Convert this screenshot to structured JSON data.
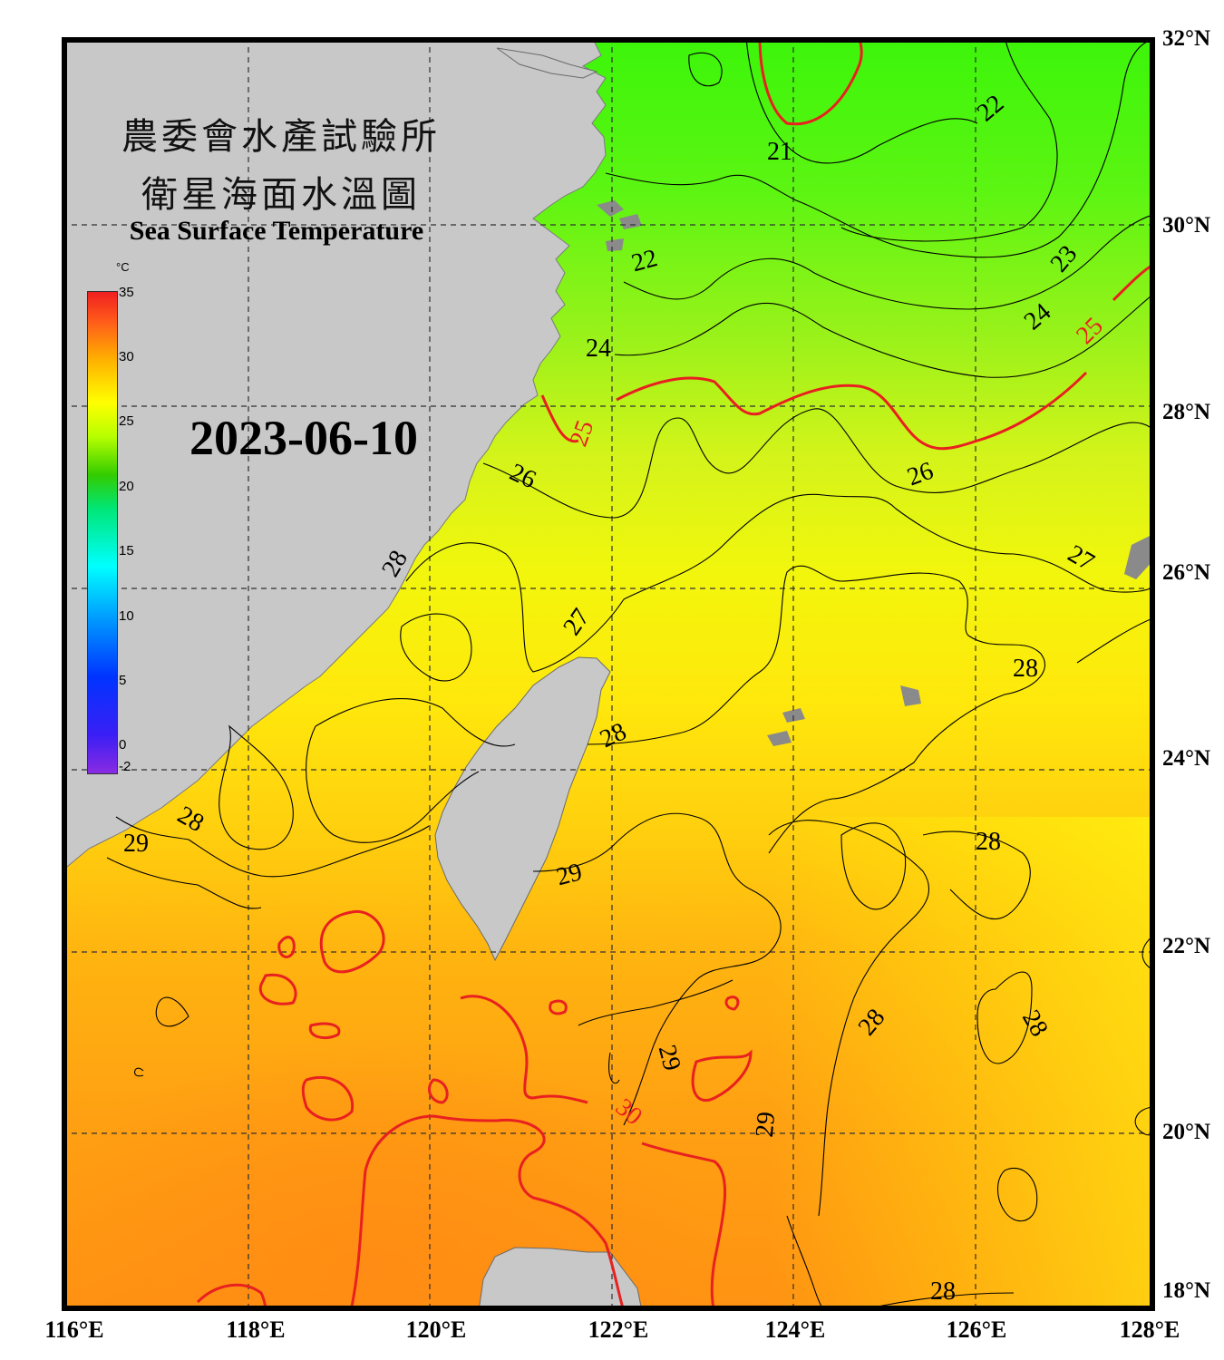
{
  "title": {
    "line1": "農委會水產試驗所",
    "line2": "衛星海面水溫圖",
    "english": "Sea Surface Temperature"
  },
  "date": "2023-06-10",
  "colorbar": {
    "unit": "°C",
    "ticks": [
      "35",
      "30",
      "25",
      "20",
      "15",
      "10",
      "5",
      "0",
      "-2"
    ],
    "min": -2,
    "max": 35
  },
  "axes": {
    "longitude_labels": [
      "116°E",
      "118°E",
      "120°E",
      "122°E",
      "124°E",
      "126°E",
      "128°E"
    ],
    "latitude_labels": [
      "32°N",
      "30°N",
      "28°N",
      "26°N",
      "24°N",
      "22°N",
      "20°N",
      "18°N"
    ]
  },
  "contour_labels": [
    "22",
    "21",
    "22",
    "23",
    "24",
    "25",
    "24",
    "25",
    "26",
    "26",
    "27",
    "27",
    "28",
    "28",
    "28",
    "29",
    "28",
    "29",
    "28",
    "29",
    "30",
    "28",
    "28",
    "29",
    "28"
  ],
  "colors": {
    "land": "#c8c8c8",
    "warm_contour": "#e82020",
    "cool_contour": "#000000",
    "frame": "#000000"
  }
}
